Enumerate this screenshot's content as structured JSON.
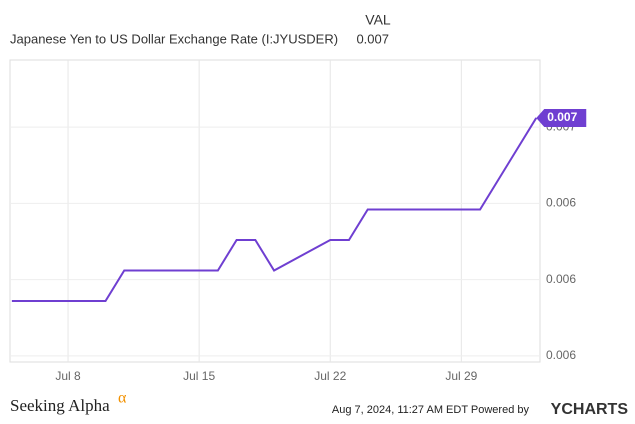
{
  "chart_data": {
    "type": "line",
    "value_header": "VAL",
    "x": [
      5,
      10,
      11,
      16,
      17,
      18,
      19,
      22,
      23,
      24,
      30,
      33
    ],
    "xlim": [
      4.9,
      33.2
    ],
    "xticks": [
      {
        "value": 8,
        "label": "Jul 8"
      },
      {
        "value": 15,
        "label": "Jul 15"
      },
      {
        "value": 22,
        "label": "Jul 22"
      },
      {
        "value": 29,
        "label": "Jul 29"
      }
    ],
    "ylim": [
      0.00598,
      0.00697
    ],
    "yticks": [
      {
        "value": 0.00675,
        "label": "0.007"
      },
      {
        "value": 0.0065,
        "label": "0.006"
      },
      {
        "value": 0.00625,
        "label": "0.006"
      },
      {
        "value": 0.006,
        "label": "0.006"
      }
    ],
    "grid": true,
    "series": [
      {
        "name": "Japanese Yen to US Dollar Exchange Rate (I:JYUSDER)",
        "color": "#6f3fd1",
        "values": [
          0.00618,
          0.00618,
          0.00628,
          0.00628,
          0.00638,
          0.00638,
          0.00628,
          0.00638,
          0.00638,
          0.00648,
          0.00648,
          0.00678
        ],
        "last_label": "0.007"
      }
    ]
  },
  "footer": {
    "brand": "Seeking Alpha",
    "brand_mark": "α",
    "timestamp": "Aug 7, 2024, 11:27 AM EDT Powered by",
    "provider": "YCHARTS"
  }
}
